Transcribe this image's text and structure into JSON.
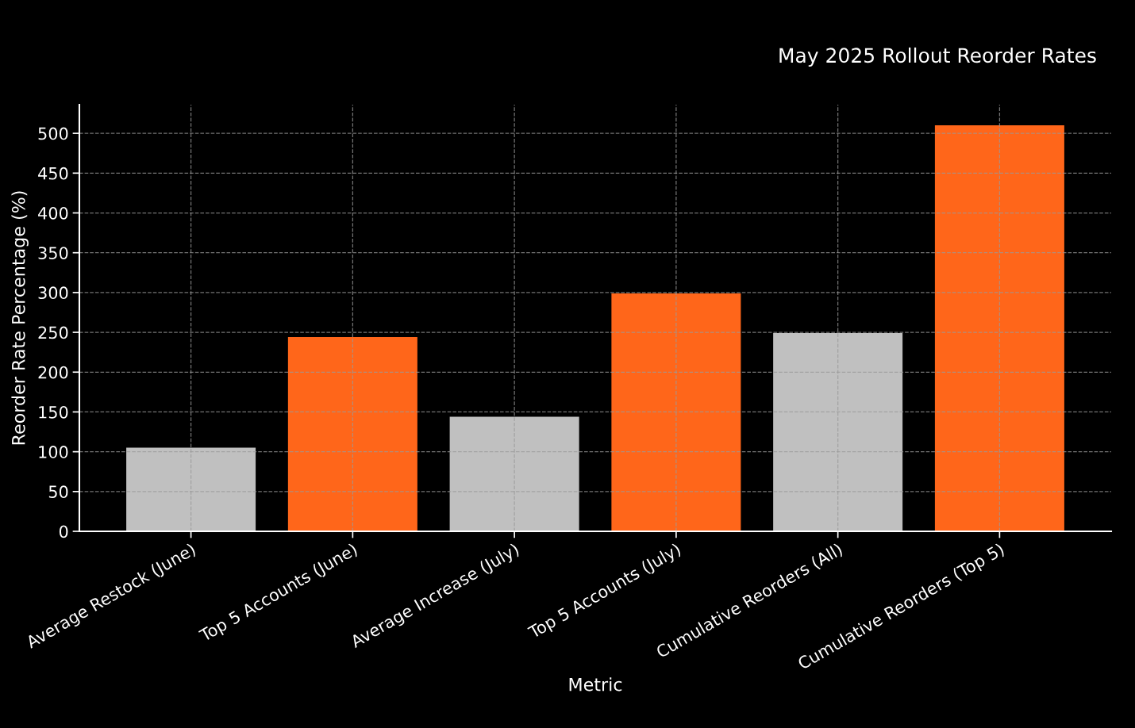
{
  "chart_data": {
    "type": "bar",
    "title": "May 2025 Rollout Reorder Rates",
    "xlabel": "Metric",
    "ylabel": "Reorder Rate Percentage (%)",
    "categories": [
      "Average Restock (June)",
      "Top 5 Accounts (June)",
      "Average Increase (July)",
      "Top 5 Accounts (July)",
      "Cumulative Reorders (All)",
      "Cumulative Reorders (Top 5)"
    ],
    "values": [
      105,
      244,
      144,
      299,
      249,
      510
    ],
    "colors": [
      "#c0c0c0",
      "#ff661a",
      "#c0c0c0",
      "#ff661a",
      "#c0c0c0",
      "#ff661a"
    ],
    "ylim": [
      0,
      536
    ],
    "yticks": [
      0,
      50,
      100,
      150,
      200,
      250,
      300,
      350,
      400,
      450,
      500
    ],
    "grid": true
  }
}
